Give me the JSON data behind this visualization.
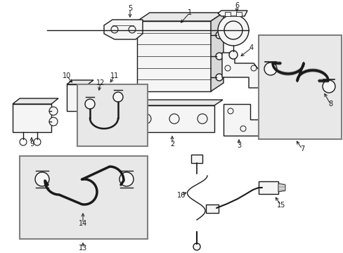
{
  "bg_color": "#ffffff",
  "line_color": "#1a1a1a",
  "box_border": "#808080",
  "part_fill": "#f5f5f5",
  "shaded_fill": "#e8e8e8",
  "fig_width": 4.89,
  "fig_height": 3.6,
  "dpi": 100
}
